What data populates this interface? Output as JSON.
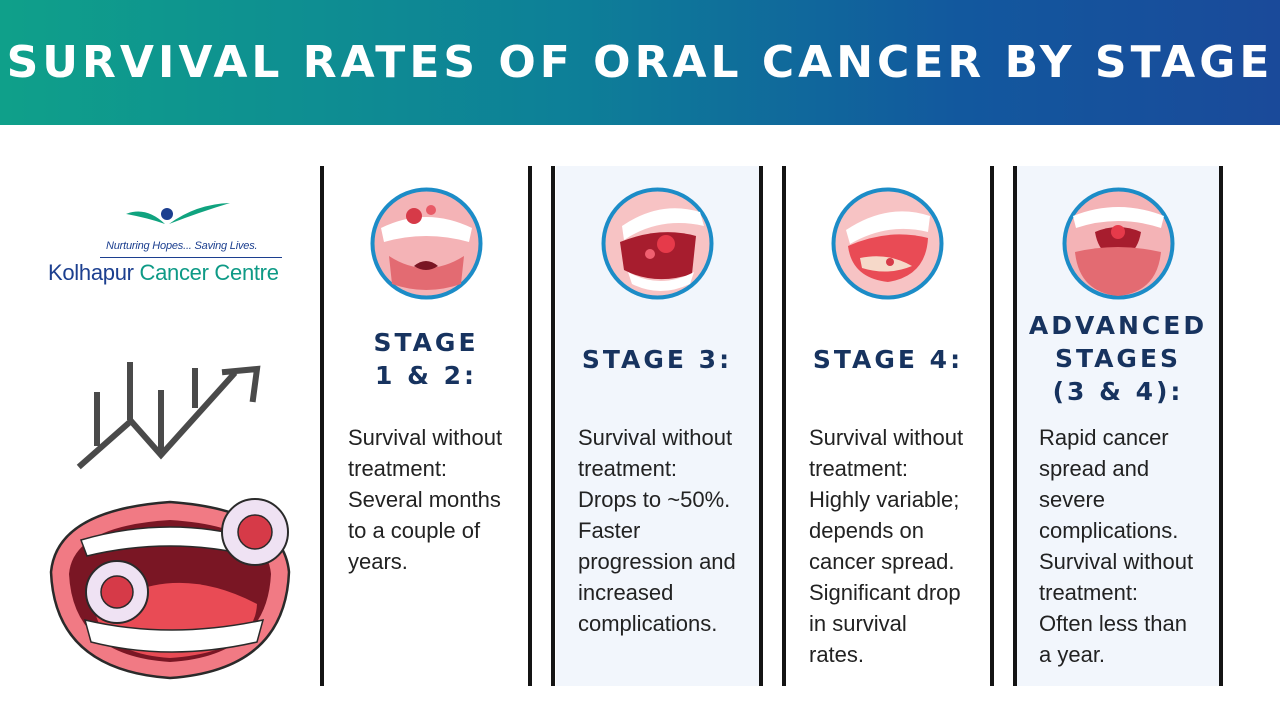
{
  "header": {
    "title": "SURVIVAL RATES OF ORAL CANCER BY STAGE"
  },
  "logo": {
    "tagline": "Nurturing Hopes... Saving Lives.",
    "name_part1": "Kolhapur ",
    "name_part2": "Cancer Centre"
  },
  "stages": [
    {
      "title_line1": "STAGE",
      "title_line2": "1 & 2:",
      "body": [
        "Survival without",
        "treatment:",
        "Several months",
        "to a couple of",
        "years."
      ]
    },
    {
      "title_line1": "STAGE 3:",
      "body": [
        "Survival without",
        "treatment:",
        "Drops to ~50%.",
        "Faster",
        "progression and",
        "increased",
        "complications."
      ]
    },
    {
      "title_line1": "STAGE 4:",
      "body": [
        "Survival without",
        "treatment:",
        "Highly variable;",
        "depends on",
        "cancer spread.",
        "Significant drop",
        "in survival",
        "rates."
      ]
    },
    {
      "title_line1": "ADVANCED",
      "title_line2": "STAGES",
      "title_line3": "(3 & 4):",
      "body": [
        "Rapid cancer",
        "spread and",
        "severe",
        "complications.",
        "Survival without",
        "treatment:",
        "Often less than",
        "a year."
      ]
    }
  ],
  "colors": {
    "banner_start": "#0fa08a",
    "banner_end": "#1a4a9a",
    "title_navy": "#17335f",
    "panel_tint": "#f2f6fc",
    "logo_navy": "#1c3f8f",
    "logo_teal": "#0e9a86"
  }
}
